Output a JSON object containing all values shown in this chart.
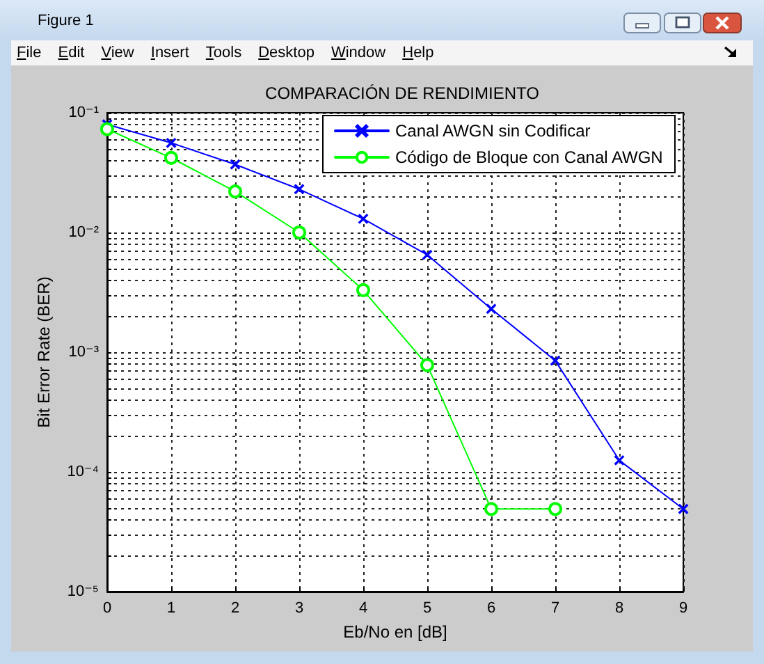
{
  "chart_data": {
    "type": "line",
    "title": "COMPARACIÓN DE RENDIMIENTO",
    "xlabel": "Eb/No en [dB]",
    "ylabel": "Bit Error Rate (BER)",
    "annotations": [
      "Figure 1",
      "File",
      "Edit",
      "View",
      "Insert",
      "Tools",
      "Desktop",
      "Window",
      "Help"
    ],
    "x": [
      0,
      1,
      2,
      3,
      4,
      5,
      6,
      7,
      8,
      9
    ],
    "series": [
      {
        "name": "Canal AWGN sin Codificar",
        "color": "#0000ff",
        "marker": "cross",
        "values": [
          0.08,
          0.056,
          0.037,
          0.023,
          0.013,
          0.0065,
          0.0023,
          0.00085,
          0.000125,
          4.9e-05
        ]
      },
      {
        "name": "Código de Bloque con Canal AWGN",
        "color": "#00ff00",
        "marker": "circle",
        "x": [
          0,
          1,
          2,
          3,
          4,
          5,
          6,
          7
        ],
        "values": [
          0.073,
          0.042,
          0.022,
          0.01,
          0.0033,
          0.00078,
          4.9e-05,
          4.9e-05
        ]
      }
    ],
    "xlim": [
      0,
      9
    ],
    "xticks": [
      0,
      1,
      2,
      3,
      4,
      5,
      6,
      7,
      8,
      9
    ],
    "ylim": [
      1e-05,
      0.1
    ],
    "yticks": [
      {
        "value": 1e-05,
        "label": "10⁻⁵"
      },
      {
        "value": 2e-05,
        "label": null
      },
      {
        "value": 3e-05,
        "label": null
      },
      {
        "value": 4e-05,
        "label": null
      },
      {
        "value": 5e-05,
        "label": null
      },
      {
        "value": 6e-05,
        "label": null
      },
      {
        "value": 7e-05,
        "label": null
      },
      {
        "value": 8e-05,
        "label": null
      },
      {
        "value": 9e-05,
        "label": null
      },
      {
        "value": 0.0001,
        "label": "10⁻⁴"
      },
      {
        "value": 0.0002,
        "label": null
      },
      {
        "value": 0.0003,
        "label": null
      },
      {
        "value": 0.0004,
        "label": null
      },
      {
        "value": 0.0005,
        "label": null
      },
      {
        "value": 0.0006,
        "label": null
      },
      {
        "value": 0.0007,
        "label": null
      },
      {
        "value": 0.0008,
        "label": null
      },
      {
        "value": 0.0009,
        "label": null
      },
      {
        "value": 0.001,
        "label": "10⁻³"
      },
      {
        "value": 0.002,
        "label": null
      },
      {
        "value": 0.003,
        "label": null
      },
      {
        "value": 0.004,
        "label": null
      },
      {
        "value": 0.005,
        "label": null
      },
      {
        "value": 0.006,
        "label": null
      },
      {
        "value": 0.007,
        "label": null
      },
      {
        "value": 0.008,
        "label": null
      },
      {
        "value": 0.009,
        "label": null
      },
      {
        "value": 0.01,
        "label": "10⁻²"
      },
      {
        "value": 0.02,
        "label": null
      },
      {
        "value": 0.03,
        "label": null
      },
      {
        "value": 0.04,
        "label": null
      },
      {
        "value": 0.05,
        "label": null
      },
      {
        "value": 0.06,
        "label": null
      },
      {
        "value": 0.07,
        "label": null
      },
      {
        "value": 0.08,
        "label": null
      },
      {
        "value": 0.09,
        "label": null
      },
      {
        "value": 0.1,
        "label": "10⁻¹"
      }
    ],
    "log": "y",
    "grid": true,
    "legend": "top right",
    "line_style": "solid"
  }
}
